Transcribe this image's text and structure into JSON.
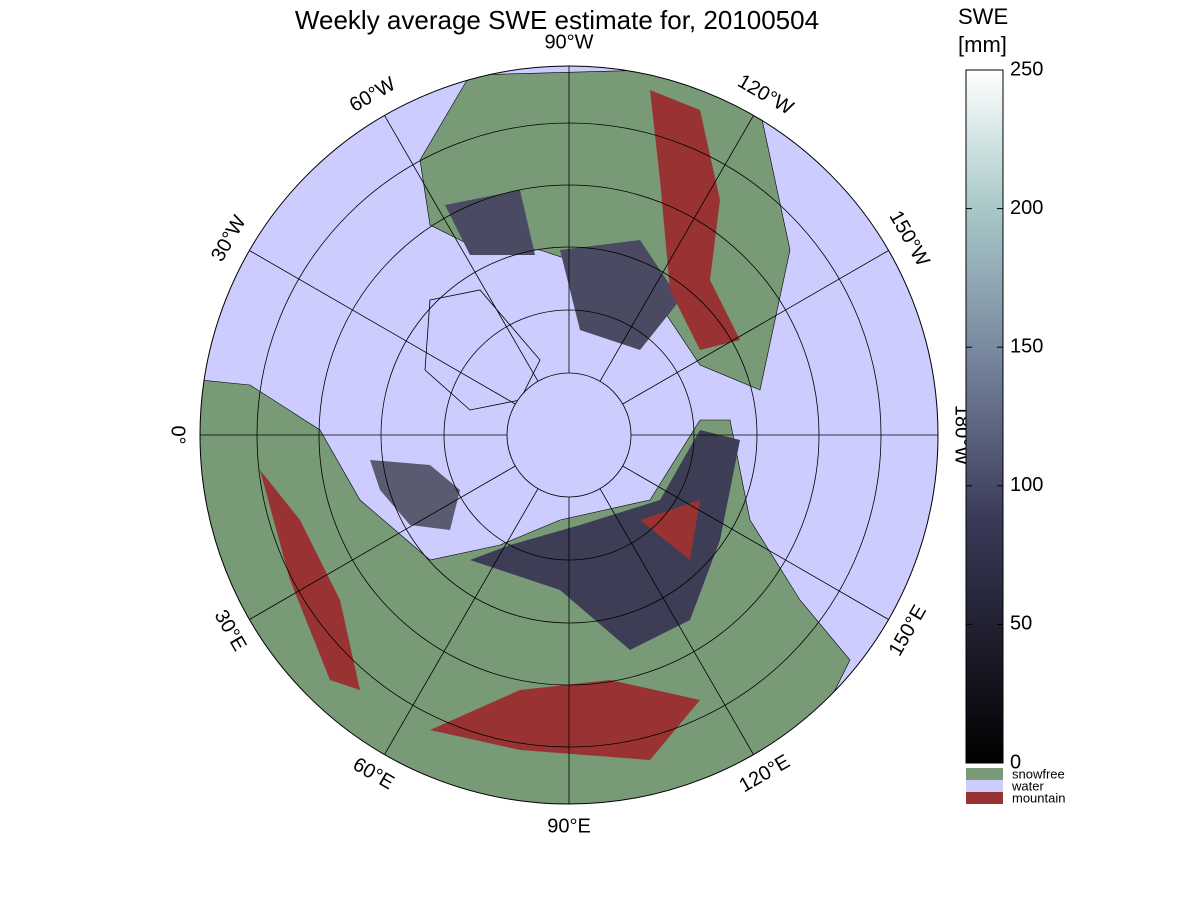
{
  "map": {
    "title": "Weekly average SWE estimate for, 20100504",
    "meridians": [
      {
        "lon": -90,
        "label": "90°W"
      },
      {
        "lon": -120,
        "label": "120°W"
      },
      {
        "lon": -150,
        "label": "150°W"
      },
      {
        "lon": -180,
        "label": "180°W"
      },
      {
        "lon": 150,
        "label": "150°E"
      },
      {
        "lon": 120,
        "label": "120°E"
      },
      {
        "lon": 90,
        "label": "90°E"
      },
      {
        "lon": 60,
        "label": "60°E"
      },
      {
        "lon": 30,
        "label": "30°E"
      },
      {
        "lon": 0,
        "label": "0°"
      },
      {
        "lon": -30,
        "label": "30°W"
      },
      {
        "lon": -60,
        "label": "60°W"
      }
    ],
    "colorbar": {
      "label": [
        "SWE",
        "[mm]"
      ],
      "lim": [
        0,
        250
      ],
      "ticks": [
        0,
        50,
        100,
        150,
        200,
        250
      ]
    },
    "legend": [
      {
        "name": "snowfree",
        "color": "#789a76"
      },
      {
        "name": "water",
        "color": "#ccccff"
      },
      {
        "name": "mountain",
        "color": "#993333"
      }
    ]
  }
}
